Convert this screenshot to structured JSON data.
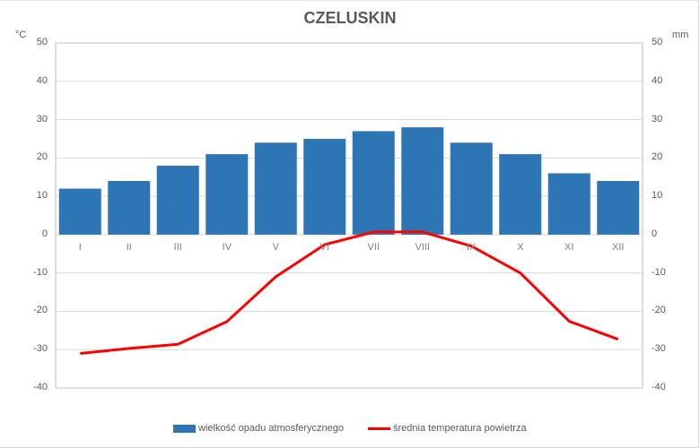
{
  "chart_data": {
    "type": "bar+line",
    "title": "CZELUSKIN",
    "categories": [
      "I",
      "II",
      "III",
      "IV",
      "V",
      "VI",
      "VII",
      "VIII",
      "IX",
      "X",
      "XI",
      "XII"
    ],
    "series": [
      {
        "name": "wielkość opadu atmosferycznego",
        "type": "bar",
        "axis": "right",
        "unit": "mm",
        "color": "#2e75b6",
        "values": [
          12,
          14,
          18,
          21,
          24,
          25,
          27,
          28,
          24,
          21,
          16,
          14
        ]
      },
      {
        "name": "średnia temperatura powietrza",
        "type": "line",
        "axis": "left",
        "unit": "°C",
        "color": "#ff0000",
        "values": [
          -31,
          -29.7,
          -28.6,
          -22.7,
          -11,
          -2.6,
          0.7,
          0.7,
          -3,
          -10,
          -22.6,
          -27.3
        ]
      }
    ],
    "ylabel_left": "°C",
    "ylabel_right": "mm",
    "ylim": [
      -40,
      50
    ],
    "yticks": [
      50,
      40,
      30,
      20,
      10,
      0,
      -10,
      -20,
      -30,
      -40
    ],
    "grid": true,
    "legend_position": "bottom"
  },
  "labels": {
    "title": "CZELUSKIN",
    "unit_left": "°C",
    "unit_right": "mm",
    "legend_bar": "wielkość opadu atmosferycznego",
    "legend_line": "średnia temperatura powietrza"
  }
}
